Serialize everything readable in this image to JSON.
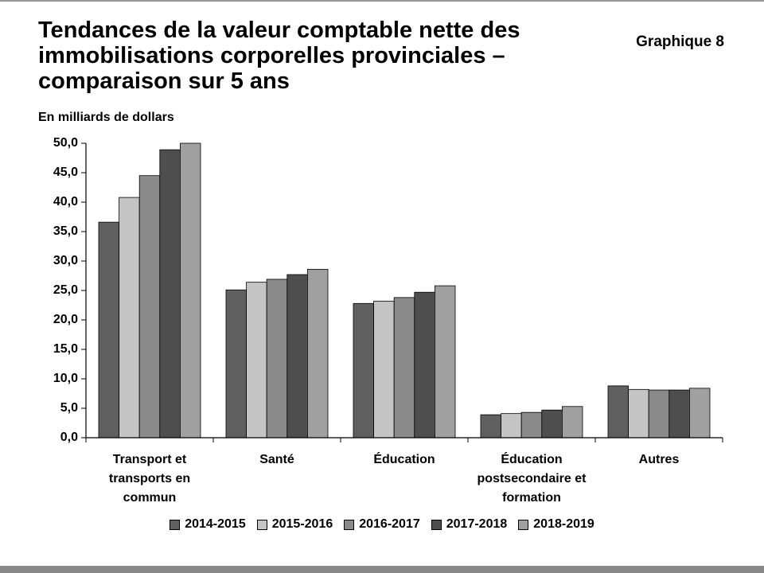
{
  "chart_data": {
    "type": "bar",
    "title": "Tendances de la valeur comptable nette des immobilisations corporelles provinciales – comparaison sur 5 ans",
    "label": "Graphique 8",
    "y_label": "En milliards de dollars",
    "categories": [
      "Transport et transports en commun",
      "Santé",
      "Éducation",
      "Éducation postsecondaire et formation",
      "Autres"
    ],
    "series": [
      {
        "name": "2014-2015",
        "color": "#606060",
        "values": [
          36.6,
          25.1,
          22.8,
          3.9,
          8.8
        ]
      },
      {
        "name": "2015-2016",
        "color": "#c4c4c4",
        "values": [
          40.8,
          26.4,
          23.2,
          4.1,
          8.2
        ]
      },
      {
        "name": "2016-2017",
        "color": "#8a8a8a",
        "values": [
          44.5,
          26.9,
          23.8,
          4.3,
          8.1
        ]
      },
      {
        "name": "2017-2018",
        "color": "#4e4e4e",
        "values": [
          48.9,
          27.7,
          24.7,
          4.7,
          8.1
        ]
      },
      {
        "name": "2018-2019",
        "color": "#a0a0a0",
        "values": [
          50.0,
          28.6,
          25.8,
          5.3,
          8.4
        ]
      }
    ],
    "ylim": [
      0,
      50
    ],
    "yticks": [
      {
        "value": 0,
        "label": "0,0"
      },
      {
        "value": 5,
        "label": "5,0"
      },
      {
        "value": 10,
        "label": "10,0"
      },
      {
        "value": 15,
        "label": "15,0"
      },
      {
        "value": 20,
        "label": "20,0"
      },
      {
        "value": 25,
        "label": "25,0"
      },
      {
        "value": 30,
        "label": "30,0"
      },
      {
        "value": 35,
        "label": "35,0"
      },
      {
        "value": 40,
        "label": "40,0"
      },
      {
        "value": 45,
        "label": "45,0"
      },
      {
        "value": 50,
        "label": "50,0"
      }
    ],
    "grid": false
  }
}
